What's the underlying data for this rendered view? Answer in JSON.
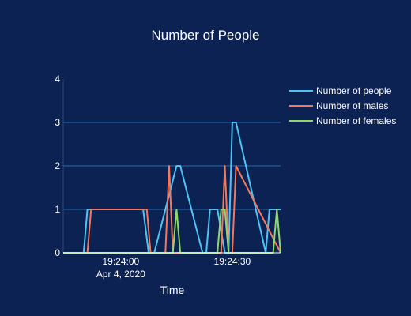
{
  "chart_data": {
    "type": "line",
    "title": "Number of People",
    "xlabel": "Time",
    "ylabel": "",
    "ylim": [
      0,
      4
    ],
    "y_ticks": [
      0,
      1,
      2,
      3,
      4
    ],
    "x_range": [
      "19:23:44.5",
      "19:24:43"
    ],
    "x_ticks": [
      {
        "value": "19:24:00",
        "label": "19:24:00",
        "sublabel": "Apr 4, 2020"
      },
      {
        "value": "19:24:30",
        "label": "19:24:30",
        "sublabel": ""
      }
    ],
    "grid": true,
    "legend_position": "top-right",
    "series": [
      {
        "name": "Number of people",
        "color": "#4fc3f7",
        "x": [
          "19:23:44.5",
          "19:23:50",
          "19:23:51",
          "19:24:06",
          "19:24:07.5",
          "19:24:09",
          "19:24:15",
          "19:24:16",
          "19:24:22",
          "19:24:23",
          "19:24:24",
          "19:24:26",
          "19:24:28",
          "19:24:29",
          "19:24:30",
          "19:24:31",
          "19:24:39",
          "19:24:40",
          "19:24:43"
        ],
        "y": [
          0,
          0,
          1,
          1,
          0,
          0,
          2,
          2,
          0,
          0,
          1,
          1,
          0,
          0,
          3,
          3,
          0,
          1,
          1
        ]
      },
      {
        "name": "Number of males",
        "color": "#f4775c",
        "x": [
          "19:23:44.5",
          "19:23:51",
          "19:23:52",
          "19:24:07",
          "19:24:08",
          "19:24:12",
          "19:24:13",
          "19:24:14",
          "19:24:27",
          "19:24:28",
          "19:24:29",
          "19:24:30",
          "19:24:31",
          "19:24:43"
        ],
        "y": [
          0,
          0,
          1,
          1,
          0,
          0,
          2,
          0,
          0,
          2,
          0,
          0,
          2,
          0
        ]
      },
      {
        "name": "Number of females",
        "color": "#8cd96a",
        "x": [
          "19:23:44.5",
          "19:24:14",
          "19:24:15",
          "19:24:16",
          "19:24:26",
          "19:24:27",
          "19:24:28",
          "19:24:29",
          "19:24:41",
          "19:24:42",
          "19:24:43"
        ],
        "y": [
          0,
          0,
          1,
          0,
          0,
          1,
          1,
          0,
          0,
          1,
          0
        ]
      }
    ]
  }
}
